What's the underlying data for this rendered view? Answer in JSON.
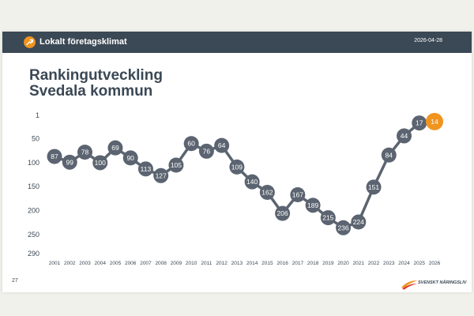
{
  "header": {
    "title": "Lokalt företagsklimat",
    "date": "2026-04-28",
    "logo_icon": "arrow-up-right-icon"
  },
  "title_line1": "Rankingutveckling",
  "title_line2": "Svedala kommun",
  "page_number": "27",
  "brand_name": "SVENSKT NÄRINGSLIV",
  "colors": {
    "header_bg": "#3b4855",
    "accent": "#f0941f",
    "marker": "#5b6470",
    "line": "#5b6470"
  },
  "chart_data": {
    "type": "line",
    "x": [
      "2001",
      "2002",
      "2003",
      "2004",
      "2005",
      "2006",
      "2007",
      "2008",
      "2009",
      "2010",
      "2011",
      "2012",
      "2013",
      "2014",
      "2015",
      "2016",
      "2017",
      "2018",
      "2019",
      "2020",
      "2021",
      "2022",
      "2023",
      "2024",
      "2025",
      "2026"
    ],
    "series": [
      {
        "values": [
          87,
          99,
          78,
          100,
          69,
          90,
          113,
          127,
          105,
          60,
          76,
          64,
          109,
          140,
          162,
          206,
          167,
          189,
          215,
          236,
          224,
          151,
          84,
          44,
          17,
          14
        ]
      }
    ],
    "y_ticks": [
      "1",
      "50",
      "100",
      "150",
      "200",
      "250",
      "290"
    ],
    "y_inverted": true,
    "ylim": [
      1,
      290
    ],
    "grid": false,
    "highlight_last": true
  }
}
